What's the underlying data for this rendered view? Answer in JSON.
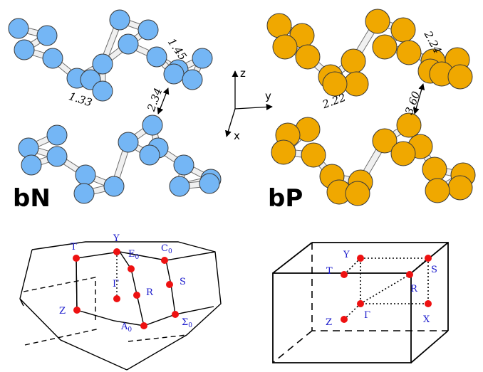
{
  "panels": {
    "bn": {
      "label": "bN",
      "atom_color": "#74b6f5",
      "distances": [
        "1.45",
        "1.33",
        "2.34"
      ]
    },
    "bp": {
      "label": "bP",
      "atom_color": "#f0a800",
      "distances": [
        "2.24",
        "2.22",
        "3.60"
      ]
    }
  },
  "axes": {
    "z": "z",
    "y": "y",
    "x": "x"
  },
  "bz_left": {
    "point_color": "#ee1111",
    "points": [
      {
        "name": "T",
        "sub": ""
      },
      {
        "name": "Y",
        "sub": ""
      },
      {
        "name": "E",
        "sub": "0"
      },
      {
        "name": "C",
        "sub": "0"
      },
      {
        "name": "Γ",
        "sub": ""
      },
      {
        "name": "R",
        "sub": ""
      },
      {
        "name": "S",
        "sub": ""
      },
      {
        "name": "Z",
        "sub": ""
      },
      {
        "name": "A",
        "sub": "0"
      },
      {
        "name": "Σ",
        "sub": "0"
      }
    ]
  },
  "bz_right": {
    "point_color": "#ee1111",
    "points": [
      {
        "name": "Y"
      },
      {
        "name": "T"
      },
      {
        "name": "S"
      },
      {
        "name": "R"
      },
      {
        "name": "Γ"
      },
      {
        "name": "X"
      },
      {
        "name": "Z"
      }
    ]
  }
}
